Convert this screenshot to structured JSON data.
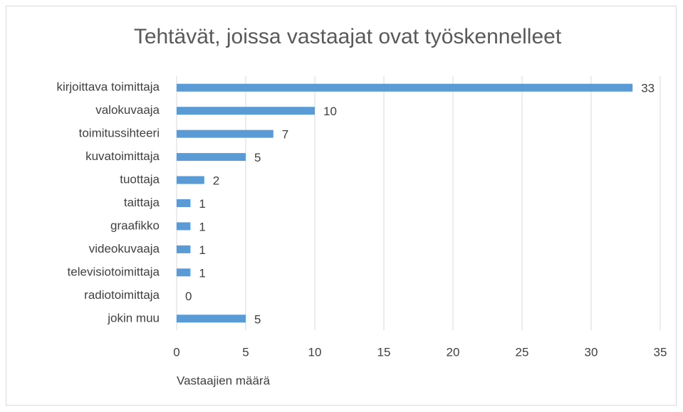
{
  "chart_data": {
    "type": "bar",
    "orientation": "horizontal",
    "title": "Tehtävät, joissa vastaajat ovat työskennelleet",
    "x_label": "Vastaajien määrä",
    "categories": [
      "kirjoittava toimittaja",
      "valokuvaaja",
      "toimitussihteeri",
      "kuvatoimittaja",
      "tuottaja",
      "taittaja",
      "graafikko",
      "videokuvaaja",
      "televisiotoimittaja",
      "radiotoimittaja",
      "jokin muu"
    ],
    "values": [
      33,
      10,
      7,
      5,
      2,
      1,
      1,
      1,
      1,
      0,
      5
    ],
    "color": "#5b9bd5",
    "xlim": [
      0,
      35
    ],
    "xticks": [
      0,
      5,
      10,
      15,
      20,
      25,
      30,
      35
    ],
    "grid": true
  }
}
